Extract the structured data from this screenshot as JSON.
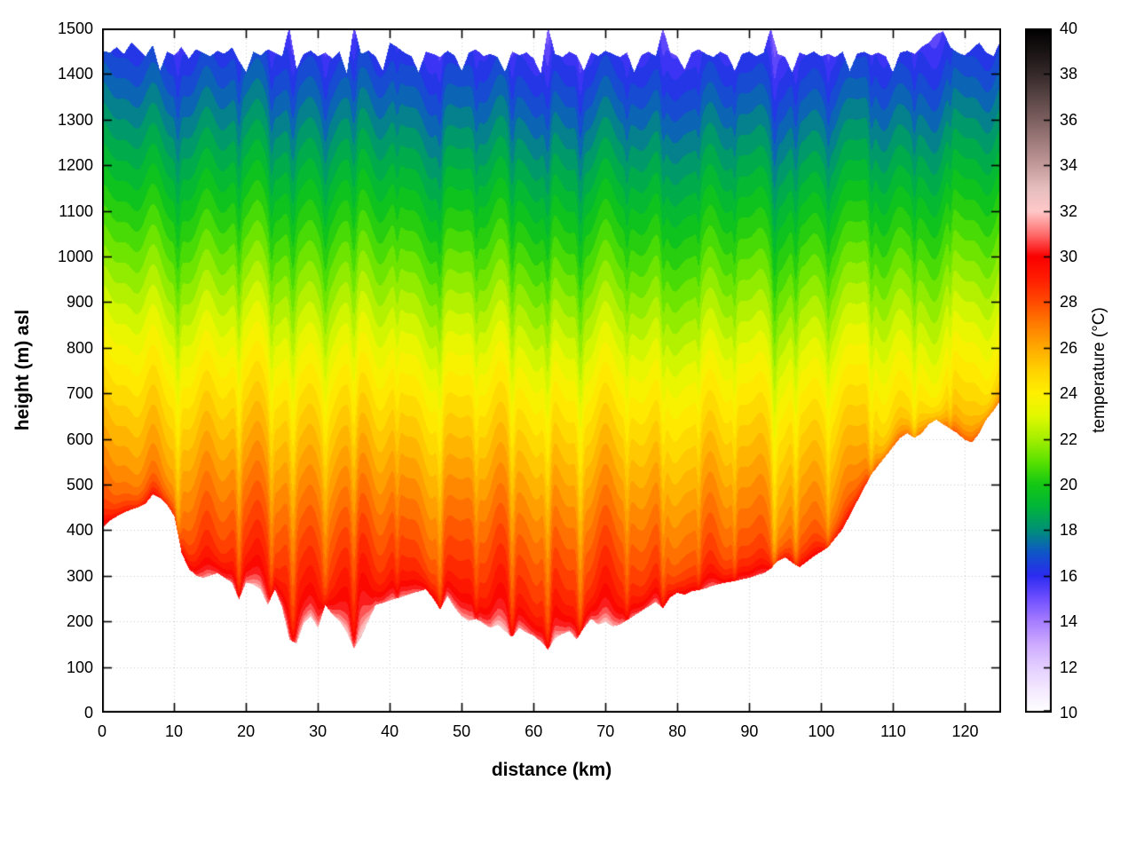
{
  "page": {
    "background": "#ffffff"
  },
  "chart_data": {
    "type": "heatmap",
    "title": "",
    "xlabel": "distance (km)",
    "ylabel": "height (m) asl",
    "colorbar_label": "temperature (°C)",
    "x_range": [
      0,
      125
    ],
    "y_range": [
      0,
      1500
    ],
    "colorbar_range": [
      10,
      40
    ],
    "x_ticks": [
      0,
      10,
      20,
      30,
      40,
      50,
      60,
      70,
      80,
      90,
      100,
      110,
      120
    ],
    "y_ticks": [
      0,
      100,
      200,
      300,
      400,
      500,
      600,
      700,
      800,
      900,
      1000,
      1100,
      1200,
      1300,
      1400,
      1500
    ],
    "colorbar_ticks": [
      10,
      12,
      14,
      16,
      18,
      20,
      22,
      24,
      26,
      28,
      30,
      32,
      34,
      36,
      38,
      40
    ],
    "grid": true,
    "grid_style": "dotted",
    "legend_position": "colorbar-right",
    "palette_stops": [
      [
        10,
        "#ffffff"
      ],
      [
        11,
        "#f4e9ff"
      ],
      [
        12,
        "#e3ceff"
      ],
      [
        13,
        "#cdaaff"
      ],
      [
        14,
        "#a57dff"
      ],
      [
        15,
        "#6f4fff"
      ],
      [
        16,
        "#2b2bf0"
      ],
      [
        17,
        "#0f55c8"
      ],
      [
        18,
        "#009078"
      ],
      [
        19,
        "#00b43c"
      ],
      [
        20,
        "#14c814"
      ],
      [
        21,
        "#5ae100"
      ],
      [
        22,
        "#a5ef00"
      ],
      [
        23,
        "#e1f800"
      ],
      [
        24,
        "#fff000"
      ],
      [
        25,
        "#ffd200"
      ],
      [
        26,
        "#ffaa00"
      ],
      [
        27,
        "#ff7d00"
      ],
      [
        28,
        "#ff4b00"
      ],
      [
        29,
        "#ff1e00"
      ],
      [
        30,
        "#fa0000"
      ],
      [
        31,
        "#ff6e6e"
      ],
      [
        32,
        "#ffc8c8"
      ],
      [
        33,
        "#e6bebe"
      ],
      [
        34,
        "#c39b9b"
      ],
      [
        35,
        "#a17d7d"
      ],
      [
        36,
        "#7d6060"
      ],
      [
        37,
        "#594545"
      ],
      [
        38,
        "#362a2a"
      ],
      [
        39,
        "#1a1414"
      ],
      [
        40,
        "#000000"
      ]
    ],
    "temperature_model": {
      "surface_intercept_c": 32,
      "lapse_c_per_m": 0.011,
      "surface_layer_boost_c": 1.8,
      "surface_layer_depth_m": 25,
      "band_quantization_c": 0.5,
      "wiggle_sines": [
        [
          0.45,
          0.9,
          1.3
        ],
        [
          0.3,
          0.37,
          0.5
        ],
        [
          0.22,
          1.7,
          2.1
        ],
        [
          0.4,
          0.05,
          0.8
        ]
      ],
      "cold_streaks": [
        [
          10.5,
          0.4,
          -1.3
        ],
        [
          19,
          0.4,
          -1.6
        ],
        [
          23.5,
          0.35,
          -1.2
        ],
        [
          26.5,
          0.5,
          -1.8
        ],
        [
          31,
          0.4,
          -1.0
        ],
        [
          35,
          0.5,
          -1.8
        ],
        [
          41,
          0.35,
          -0.9
        ],
        [
          47,
          0.4,
          -1.4
        ],
        [
          52,
          0.35,
          -1.0
        ],
        [
          57,
          0.45,
          -1.8
        ],
        [
          62,
          0.5,
          -2.0
        ],
        [
          66.5,
          0.45,
          -1.8
        ],
        [
          73,
          0.35,
          -1.0
        ],
        [
          78,
          0.4,
          -1.2
        ],
        [
          83,
          0.3,
          -0.8
        ],
        [
          88,
          0.3,
          -0.9
        ],
        [
          93.5,
          0.4,
          -1.5
        ],
        [
          96.5,
          0.4,
          -1.4
        ],
        [
          101,
          0.3,
          -0.8
        ],
        [
          107,
          0.4,
          -1.2
        ],
        [
          113,
          0.35,
          -0.9
        ],
        [
          118,
          0.3,
          -0.8
        ]
      ]
    },
    "terrain_profile_m": [
      405,
      420,
      430,
      438,
      445,
      450,
      458,
      478,
      470,
      455,
      430,
      350,
      315,
      300,
      295,
      300,
      305,
      295,
      285,
      248,
      285,
      280,
      270,
      235,
      270,
      230,
      160,
      150,
      195,
      210,
      185,
      235,
      215,
      200,
      175,
      140,
      165,
      200,
      235,
      240,
      245,
      250,
      255,
      260,
      265,
      270,
      250,
      225,
      255,
      230,
      210,
      200,
      205,
      195,
      185,
      192,
      178,
      165,
      185,
      175,
      168,
      155,
      138,
      162,
      172,
      178,
      160,
      185,
      205,
      192,
      198,
      188,
      192,
      202,
      212,
      222,
      232,
      242,
      228,
      252,
      262,
      258,
      265,
      268,
      272,
      278,
      282,
      285,
      288,
      292,
      295,
      300,
      305,
      315,
      332,
      340,
      328,
      318,
      330,
      342,
      352,
      362,
      382,
      402,
      432,
      462,
      492,
      522,
      542,
      562,
      582,
      602,
      612,
      602,
      612,
      632,
      642,
      632,
      622,
      612,
      598,
      592,
      612,
      642,
      662,
      685
    ],
    "top_boundary_m": [
      1452,
      1448,
      1460,
      1445,
      1470,
      1455,
      1440,
      1465,
      1408,
      1450,
      1442,
      1460,
      1435,
      1455,
      1448,
      1440,
      1452,
      1445,
      1460,
      1430,
      1405,
      1450,
      1442,
      1455,
      1448,
      1440,
      1505,
      1412,
      1445,
      1452,
      1440,
      1448,
      1435,
      1450,
      1402,
      1508,
      1445,
      1452,
      1440,
      1408,
      1470,
      1460,
      1448,
      1440,
      1405,
      1450,
      1445,
      1438,
      1452,
      1442,
      1408,
      1448,
      1455,
      1440,
      1445,
      1438,
      1405,
      1450,
      1442,
      1448,
      1435,
      1402,
      1505,
      1445,
      1438,
      1450,
      1442,
      1408,
      1448,
      1440,
      1452,
      1445,
      1438,
      1448,
      1405,
      1442,
      1450,
      1440,
      1502,
      1448,
      1440,
      1410,
      1448,
      1455,
      1445,
      1438,
      1450,
      1442,
      1408,
      1445,
      1450,
      1440,
      1448,
      1502,
      1445,
      1438,
      1405,
      1448,
      1442,
      1450,
      1440,
      1445,
      1438,
      1450,
      1408,
      1445,
      1450,
      1442,
      1448,
      1440,
      1405,
      1448,
      1452,
      1445,
      1460,
      1470,
      1488,
      1495,
      1460,
      1448,
      1442,
      1455,
      1470,
      1448,
      1440,
      1475
    ]
  }
}
